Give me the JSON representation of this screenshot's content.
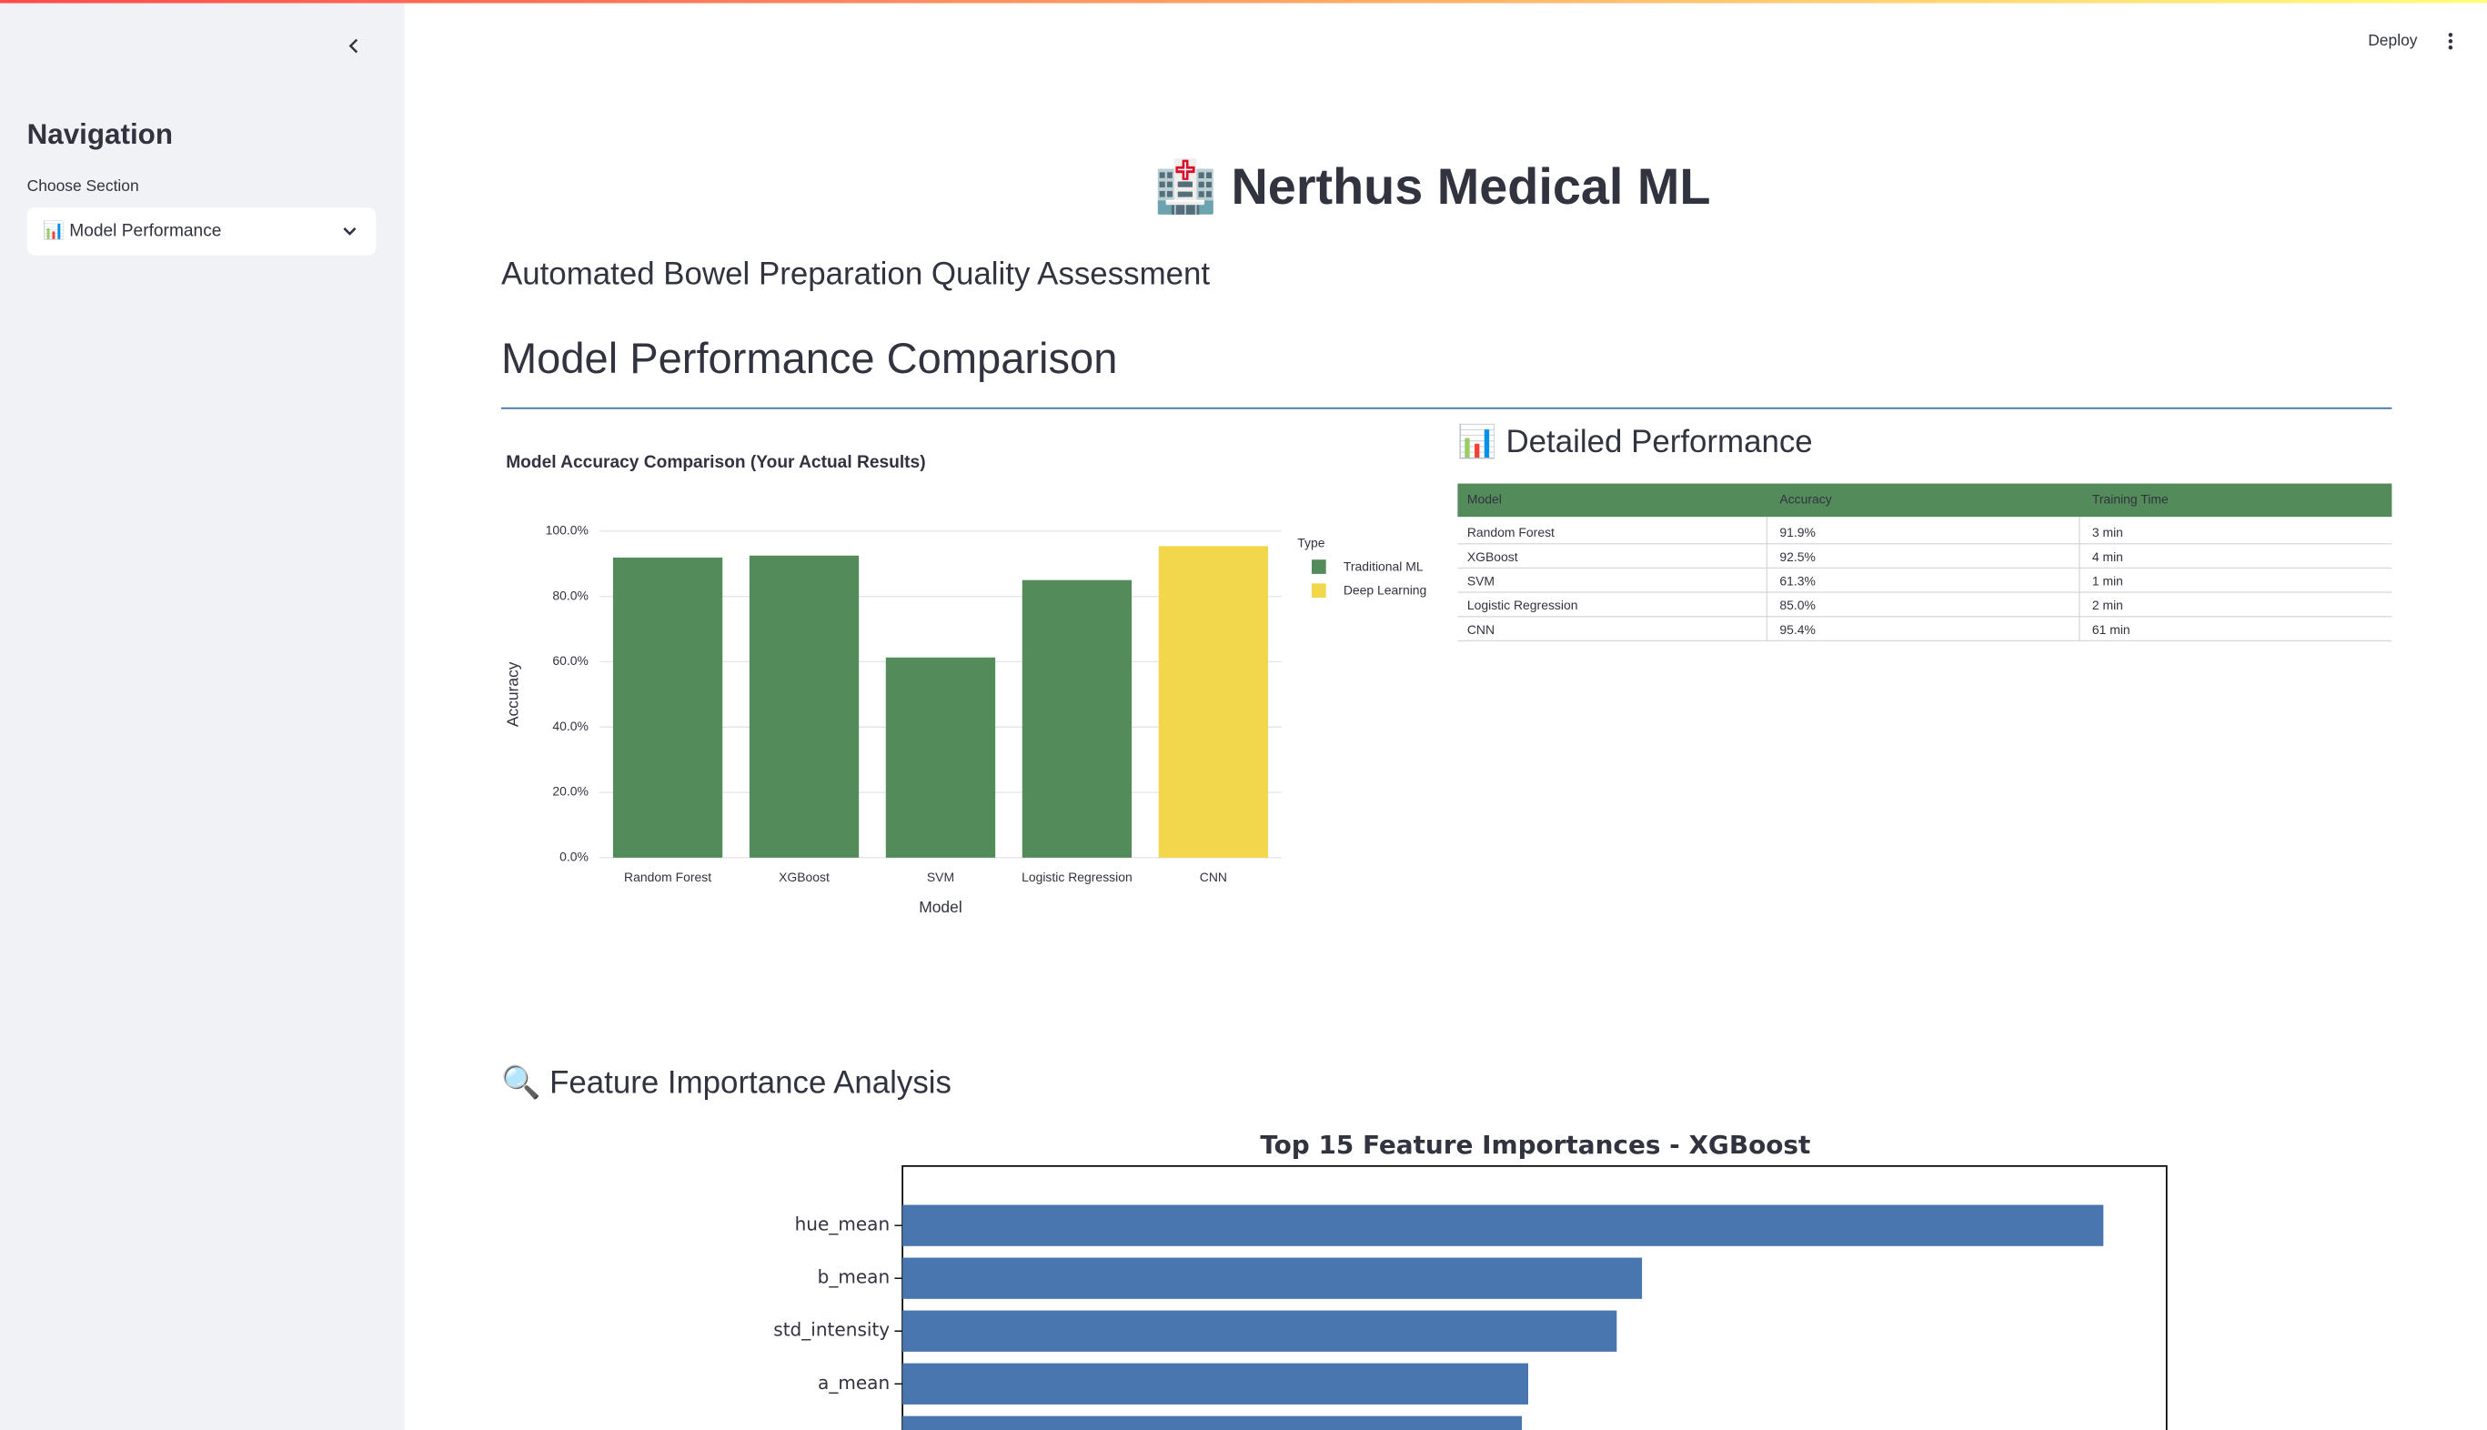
{
  "sidebar": {
    "title": "Navigation",
    "select_label": "Choose Section",
    "selected": "📊 Model Performance"
  },
  "header": {
    "deploy": "Deploy",
    "title": "🏥 Nerthus Medical ML",
    "subtitle": "Automated Bowel Preparation Quality Assessment"
  },
  "section_title": "Model Performance Comparison",
  "accuracy_chart": {
    "type": "bar",
    "title": "Model Accuracy Comparison (Your Actual Results)",
    "x_label": "Model",
    "y_label": "Accuracy",
    "legend_title": "Type",
    "categories": [
      "Random Forest",
      "XGBoost",
      "SVM",
      "Logistic Regression",
      "CNN"
    ],
    "series": [
      {
        "name": "Traditional ML",
        "color": "#548b5b",
        "values": [
          91.9,
          92.5,
          61.3,
          85.0,
          null
        ]
      },
      {
        "name": "Deep Learning",
        "color": "#f2d64b",
        "values": [
          null,
          null,
          null,
          null,
          95.4
        ]
      }
    ],
    "ylim": [
      0,
      100
    ],
    "yticks": [
      {
        "value": 0,
        "label": "0.0%"
      },
      {
        "value": 20,
        "label": "20.0%"
      },
      {
        "value": 40,
        "label": "40.0%"
      },
      {
        "value": 60,
        "label": "60.0%"
      },
      {
        "value": 80,
        "label": "80.0%"
      },
      {
        "value": 100,
        "label": "100.0%"
      }
    ],
    "grid": true
  },
  "table": {
    "title": "📊 Detailed Performance",
    "columns": [
      "Model",
      "Accuracy",
      "Training Time"
    ],
    "rows": [
      [
        "Random Forest",
        "91.9%",
        "3 min"
      ],
      [
        "XGBoost",
        "92.5%",
        "4 min"
      ],
      [
        "SVM",
        "61.3%",
        "1 min"
      ],
      [
        "Logistic Regression",
        "85.0%",
        "2 min"
      ],
      [
        "CNN",
        "95.4%",
        "61 min"
      ]
    ]
  },
  "feature_section_title": "🔍 Feature Importance Analysis",
  "feature_chart": {
    "type": "barh",
    "title": "Top 15 Feature Importances - XGBoost",
    "categories": [
      "hue_mean",
      "b_mean",
      "std_intensity",
      "a_mean",
      null
    ],
    "values": [
      0.19,
      0.117,
      0.113,
      0.099,
      0.098
    ],
    "xlim": [
      0,
      0.2
    ],
    "color": "#4a76b0"
  }
}
